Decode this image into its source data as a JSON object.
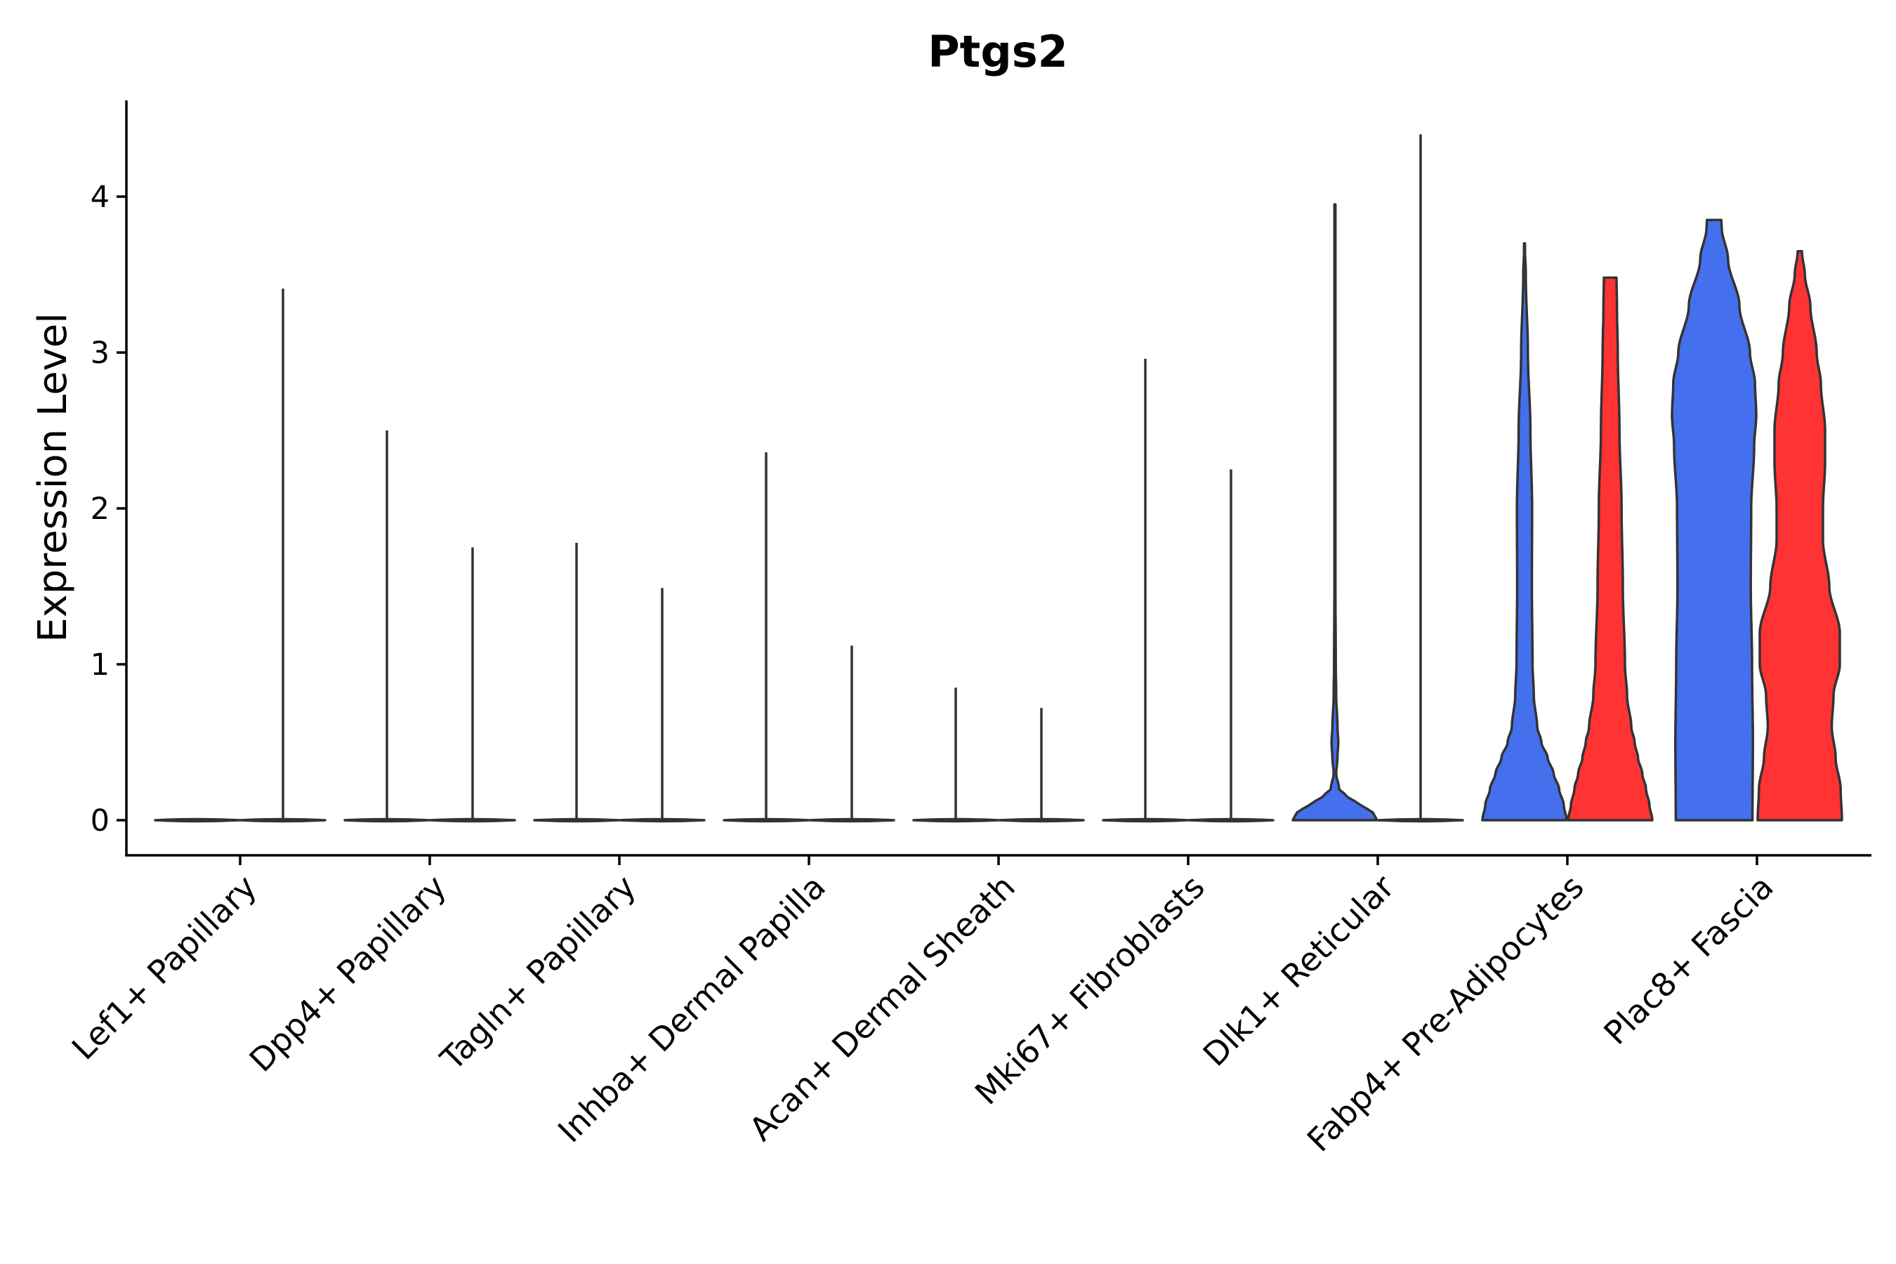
{
  "chart_data": {
    "type": "violin",
    "title": "Ptgs2",
    "xlabel": "",
    "ylabel": "Expression Level",
    "ylim": [
      -0.22,
      4.62
    ],
    "yticks": [
      "0",
      "1",
      "2",
      "3",
      "4"
    ],
    "legend": "none",
    "colors": {
      "group_a": "#4470ED",
      "group_b": "#FF3333",
      "outline": "#333333",
      "flat": "#FFFFFF"
    },
    "categories": [
      "Lef1+ Papillary",
      "Dpp4+ Papillary",
      "Tagln+ Papillary",
      "Inhba+ Dermal Papilla",
      "Acan+ Dermal Sheath",
      "Mki67+ Fibroblasts",
      "Dlk1+ Reticular",
      "Fabp4+ Pre-Adipocytes",
      "Plac8+ Fascia"
    ],
    "violins": [
      {
        "category": 0,
        "group": "a",
        "max": 0.0,
        "profile": [
          [
            0,
            1
          ],
          [
            0.005,
            1
          ],
          [
            0.01,
            0
          ]
        ]
      },
      {
        "category": 0,
        "group": "b",
        "max": 3.41,
        "profile": [
          [
            0,
            1
          ],
          [
            0.005,
            1
          ],
          [
            0.01,
            0
          ]
        ]
      },
      {
        "category": 1,
        "group": "a",
        "max": 2.5,
        "profile": [
          [
            0,
            1
          ],
          [
            0.005,
            1
          ],
          [
            0.01,
            0
          ]
        ]
      },
      {
        "category": 1,
        "group": "b",
        "max": 1.75,
        "profile": [
          [
            0,
            1
          ],
          [
            0.005,
            1
          ],
          [
            0.01,
            0
          ]
        ]
      },
      {
        "category": 2,
        "group": "a",
        "max": 1.78,
        "profile": [
          [
            0,
            1
          ],
          [
            0.005,
            1
          ],
          [
            0.01,
            0
          ]
        ]
      },
      {
        "category": 2,
        "group": "b",
        "max": 1.49,
        "profile": [
          [
            0,
            1
          ],
          [
            0.005,
            1
          ],
          [
            0.01,
            0
          ]
        ]
      },
      {
        "category": 3,
        "group": "a",
        "max": 2.36,
        "profile": [
          [
            0,
            1
          ],
          [
            0.005,
            1
          ],
          [
            0.01,
            0
          ]
        ]
      },
      {
        "category": 3,
        "group": "b",
        "max": 1.12,
        "profile": [
          [
            0,
            1
          ],
          [
            0.005,
            1
          ],
          [
            0.01,
            0
          ]
        ]
      },
      {
        "category": 4,
        "group": "a",
        "max": 0.85,
        "profile": [
          [
            0,
            1
          ],
          [
            0.005,
            1
          ],
          [
            0.01,
            0
          ]
        ]
      },
      {
        "category": 4,
        "group": "b",
        "max": 0.72,
        "profile": [
          [
            0,
            1
          ],
          [
            0.005,
            1
          ],
          [
            0.01,
            0
          ]
        ]
      },
      {
        "category": 5,
        "group": "a",
        "max": 2.96,
        "profile": [
          [
            0,
            1
          ],
          [
            0.005,
            1
          ],
          [
            0.01,
            0
          ]
        ]
      },
      {
        "category": 5,
        "group": "b",
        "max": 2.25,
        "profile": [
          [
            0,
            1
          ],
          [
            0.005,
            1
          ],
          [
            0.01,
            0
          ]
        ]
      },
      {
        "category": 6,
        "group": "a",
        "max": 3.95,
        "filled": true,
        "profile": [
          [
            0,
            1
          ],
          [
            0.05,
            0.9
          ],
          [
            0.1,
            0.6
          ],
          [
            0.15,
            0.3
          ],
          [
            0.2,
            0.1
          ],
          [
            0.3,
            0.03
          ],
          [
            0.4,
            0.06
          ],
          [
            0.5,
            0.08
          ],
          [
            0.6,
            0.06
          ],
          [
            0.8,
            0.03
          ],
          [
            1.0,
            0.02
          ],
          [
            1.5,
            0.012
          ],
          [
            2.0,
            0.01
          ],
          [
            3.0,
            0.004
          ],
          [
            3.95,
            0.002
          ]
        ]
      },
      {
        "category": 6,
        "group": "b",
        "max": 4.4,
        "profile": [
          [
            0,
            1
          ],
          [
            0.005,
            1
          ],
          [
            0.01,
            0
          ]
        ]
      },
      {
        "category": 7,
        "group": "a",
        "max": 3.7,
        "filled": true,
        "profile": [
          [
            0,
            1
          ],
          [
            0.1,
            0.93
          ],
          [
            0.2,
            0.82
          ],
          [
            0.3,
            0.69
          ],
          [
            0.4,
            0.55
          ],
          [
            0.5,
            0.4
          ],
          [
            0.6,
            0.3
          ],
          [
            0.8,
            0.22
          ],
          [
            1.0,
            0.19
          ],
          [
            1.5,
            0.175
          ],
          [
            2.0,
            0.18
          ],
          [
            2.5,
            0.14
          ],
          [
            3.0,
            0.08
          ],
          [
            3.5,
            0.03
          ],
          [
            3.7,
            0.005
          ]
        ]
      },
      {
        "category": 7,
        "group": "b",
        "max": 3.48,
        "filled": true,
        "profile": [
          [
            0,
            1
          ],
          [
            0.1,
            0.93
          ],
          [
            0.2,
            0.85
          ],
          [
            0.3,
            0.76
          ],
          [
            0.4,
            0.66
          ],
          [
            0.5,
            0.58
          ],
          [
            0.6,
            0.5
          ],
          [
            0.8,
            0.4
          ],
          [
            1.0,
            0.35
          ],
          [
            1.5,
            0.3
          ],
          [
            2.0,
            0.27
          ],
          [
            2.5,
            0.22
          ],
          [
            3.0,
            0.18
          ],
          [
            3.3,
            0.16
          ],
          [
            3.48,
            0.15
          ]
        ]
      },
      {
        "category": 8,
        "group": "a",
        "max": 3.85,
        "filled": true,
        "profile": [
          [
            0,
            0.91
          ],
          [
            0.5,
            0.92
          ],
          [
            1.0,
            0.9
          ],
          [
            1.5,
            0.87
          ],
          [
            2.0,
            0.88
          ],
          [
            2.4,
            0.95
          ],
          [
            2.6,
            1.0
          ],
          [
            2.8,
            0.97
          ],
          [
            3.0,
            0.85
          ],
          [
            3.3,
            0.6
          ],
          [
            3.6,
            0.33
          ],
          [
            3.8,
            0.18
          ],
          [
            3.85,
            0.17
          ]
        ]
      },
      {
        "category": 8,
        "group": "b",
        "max": 3.65,
        "filled": true,
        "profile": [
          [
            0,
            1
          ],
          [
            0.2,
            0.97
          ],
          [
            0.4,
            0.85
          ],
          [
            0.6,
            0.76
          ],
          [
            0.8,
            0.8
          ],
          [
            1.0,
            0.95
          ],
          [
            1.2,
            0.95
          ],
          [
            1.5,
            0.7
          ],
          [
            1.8,
            0.55
          ],
          [
            2.0,
            0.55
          ],
          [
            2.3,
            0.6
          ],
          [
            2.5,
            0.6
          ],
          [
            2.8,
            0.5
          ],
          [
            3.0,
            0.4
          ],
          [
            3.3,
            0.25
          ],
          [
            3.5,
            0.12
          ],
          [
            3.65,
            0.05
          ]
        ]
      }
    ]
  }
}
